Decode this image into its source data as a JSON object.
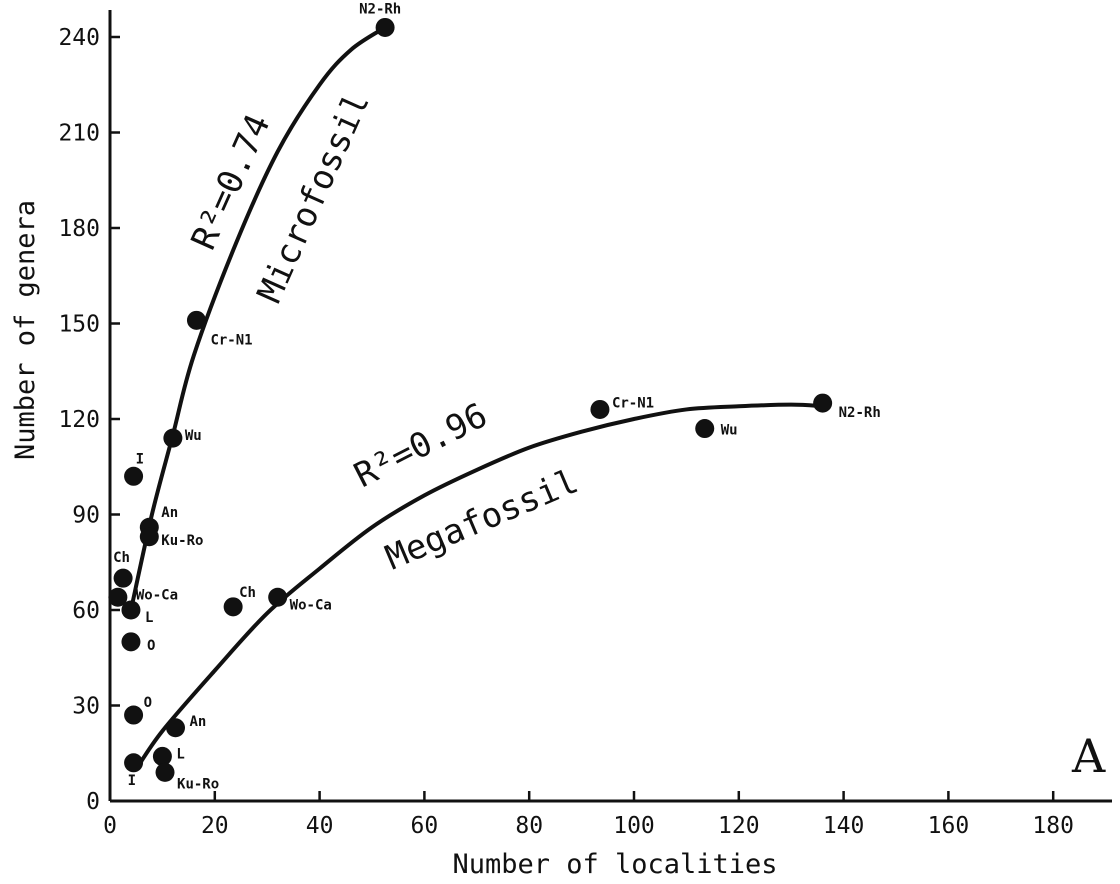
{
  "chart_data": {
    "type": "scatter",
    "xlabel": "Number of localities",
    "ylabel": "Number of genera",
    "xlim": [
      0,
      180
    ],
    "ylim": [
      0,
      240
    ],
    "x_ticks": [
      0,
      20,
      40,
      60,
      80,
      100,
      120,
      140,
      160,
      180
    ],
    "y_ticks": [
      0,
      30,
      60,
      90,
      120,
      150,
      180,
      210,
      240
    ],
    "grid": false,
    "panel_label": "A",
    "series": [
      {
        "name": "Microfossil",
        "r2_label": "R²=0.74",
        "points": [
          {
            "x": 52.5,
            "y": 243,
            "label": "N2-Rh"
          },
          {
            "x": 16.5,
            "y": 151,
            "label": "Cr-N1"
          },
          {
            "x": 12,
            "y": 114,
            "label": "Wu"
          },
          {
            "x": 4.5,
            "y": 102,
            "label": "I"
          },
          {
            "x": 7.5,
            "y": 86,
            "label": "An"
          },
          {
            "x": 7.5,
            "y": 83,
            "label": "Ku-Ro"
          },
          {
            "x": 2.5,
            "y": 70,
            "label": "Ch"
          },
          {
            "x": 1.5,
            "y": 64,
            "label": "Wo-Ca"
          },
          {
            "x": 4,
            "y": 60,
            "label": "L"
          },
          {
            "x": 4,
            "y": 50,
            "label": "O"
          }
        ],
        "fit_curve": [
          [
            4,
            60
          ],
          [
            8,
            90
          ],
          [
            12,
            115
          ],
          [
            16,
            140
          ],
          [
            24,
            175
          ],
          [
            32,
            204
          ],
          [
            40,
            225
          ],
          [
            46,
            236
          ],
          [
            52.5,
            243
          ]
        ]
      },
      {
        "name": "Megafossil",
        "r2_label": "R²=0.96",
        "points": [
          {
            "x": 136,
            "y": 125,
            "label": "N2-Rh"
          },
          {
            "x": 93.5,
            "y": 123,
            "label": "Cr-N1"
          },
          {
            "x": 113.5,
            "y": 117,
            "label": "Wu"
          },
          {
            "x": 23.5,
            "y": 61,
            "label": "Ch"
          },
          {
            "x": 32,
            "y": 64,
            "label": "Wo-Ca"
          },
          {
            "x": 4.5,
            "y": 27,
            "label": "O"
          },
          {
            "x": 12.5,
            "y": 23,
            "label": "An"
          },
          {
            "x": 10,
            "y": 14,
            "label": "L"
          },
          {
            "x": 4.5,
            "y": 12,
            "label": "I"
          },
          {
            "x": 10.5,
            "y": 9,
            "label": "Ku-Ro"
          }
        ],
        "fit_curve": [
          [
            5,
            10
          ],
          [
            10,
            22
          ],
          [
            20,
            41
          ],
          [
            30,
            59
          ],
          [
            40,
            73
          ],
          [
            50,
            86
          ],
          [
            60,
            96
          ],
          [
            70,
            104
          ],
          [
            80,
            111
          ],
          [
            90,
            116
          ],
          [
            100,
            120
          ],
          [
            110,
            123
          ],
          [
            120,
            124
          ],
          [
            130,
            124.5
          ],
          [
            136,
            124
          ]
        ]
      }
    ]
  }
}
